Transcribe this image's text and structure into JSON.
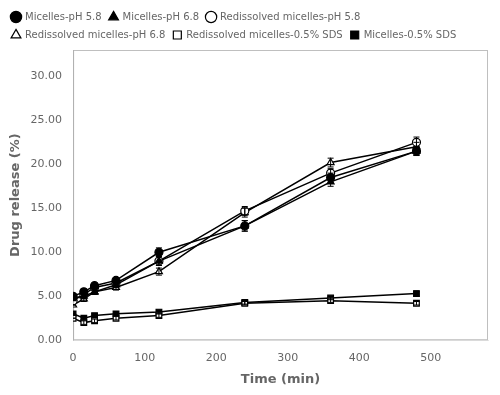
{
  "chart_data": {
    "type": "line",
    "xlabel": "Time (min)",
    "ylabel": "Drug release (%)",
    "x": [
      0,
      15,
      30,
      60,
      120,
      240,
      360,
      480
    ],
    "series": [
      {
        "name": "Micelles-pH 5.8",
        "color": "black",
        "marker": "circle",
        "values": [
          5.0,
          5.5,
          6.2,
          6.8,
          10.0,
          13.0,
          18.5,
          21.5
        ],
        "errors": [
          0.0,
          0.3,
          0.3,
          0.3,
          0.5,
          0.6,
          0.5,
          0.5
        ]
      },
      {
        "name": "Micelles-pH 6.8",
        "color": "black",
        "marker": "triangle",
        "values": [
          4.8,
          5.0,
          5.5,
          6.3,
          9.0,
          13.0,
          18.0,
          21.5
        ],
        "errors": [
          0.0,
          0.3,
          0.3,
          0.3,
          0.5,
          0.6,
          0.5,
          0.5
        ]
      },
      {
        "name": "Redissolved micelles-pH 5.8",
        "color": "black",
        "marker": "open-circle",
        "values": [
          4.5,
          5.2,
          6.0,
          6.5,
          9.0,
          14.7,
          19.0,
          22.5
        ],
        "errors": [
          0.0,
          0.3,
          0.3,
          0.3,
          0.5,
          0.5,
          0.5,
          0.6
        ]
      },
      {
        "name": "Redissolved micelles-pH 6.8",
        "color": "black",
        "marker": "open-triangle",
        "values": [
          4.0,
          4.7,
          5.5,
          6.0,
          7.8,
          14.5,
          20.2,
          22.0
        ],
        "errors": [
          0.0,
          0.3,
          0.3,
          0.3,
          0.4,
          0.5,
          0.5,
          0.5
        ]
      },
      {
        "name": "Redissolved micelles-0.5% SDS",
        "color": "black",
        "marker": "open-square",
        "values": [
          2.5,
          2.0,
          2.2,
          2.5,
          2.8,
          4.2,
          4.5,
          4.2
        ],
        "errors": [
          0.0,
          0.2,
          0.2,
          0.2,
          0.2,
          0.2,
          0.2,
          0.2
        ]
      },
      {
        "name": "Micelles-0.5% SDS",
        "color": "black",
        "marker": "square",
        "values": [
          3.0,
          2.5,
          2.8,
          3.0,
          3.2,
          4.3,
          4.8,
          5.3
        ],
        "errors": [
          0.0,
          0.2,
          0.2,
          0.2,
          0.2,
          0.2,
          0.2,
          0.3
        ]
      }
    ],
    "xlim": [
      0,
      580
    ],
    "ylim": [
      0.0,
      33.0
    ],
    "xticks": [
      0,
      100,
      200,
      300,
      400,
      500
    ],
    "yticks": [
      {
        "value": 0.0,
        "label": "0.00"
      },
      {
        "value": 5.0,
        "label": "5.00"
      },
      {
        "value": 10.0,
        "label": "10.00"
      },
      {
        "value": 15.0,
        "label": "15.00"
      },
      {
        "value": 20.0,
        "label": "20.00"
      },
      {
        "value": 25.0,
        "label": "25.00"
      },
      {
        "value": 30.0,
        "label": "30.00"
      }
    ],
    "grid": false,
    "legend": "upper left"
  }
}
